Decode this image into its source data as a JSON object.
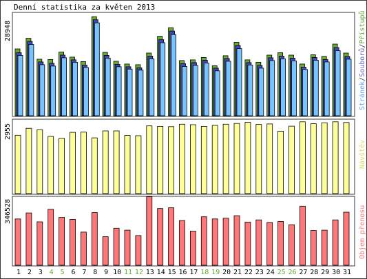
{
  "chart_data": {
    "type": "bar",
    "title": "Denní statistika za květen 2013",
    "categories": [
      "1",
      "2",
      "3",
      "4",
      "5",
      "6",
      "7",
      "8",
      "9",
      "10",
      "11",
      "12",
      "13",
      "14",
      "15",
      "16",
      "17",
      "18",
      "19",
      "20",
      "21",
      "22",
      "23",
      "24",
      "25",
      "26",
      "27",
      "28",
      "29",
      "30",
      "31"
    ],
    "weekend_days": [
      "4",
      "5",
      "11",
      "12",
      "18",
      "19",
      "25",
      "26"
    ],
    "colors": {
      "frame": "#3a3a3a",
      "pristupu": "#66aa33",
      "soubory": "#4444bb",
      "stranky": "#77c4ff",
      "navstevy": "#ffff99",
      "objem": "#ff7777",
      "weekend_label": "#66aa33",
      "label_stranky": "#66aaff",
      "label_soubory": "#6666cc",
      "label_pristupu": "#66aa33",
      "label_navstevy": "#dddd66",
      "label_objem": "#ff7777"
    },
    "panels": [
      {
        "id": "traffic",
        "ymax": 28948,
        "ymax_label": "28948",
        "series_labels": [
          "Stránek",
          "Souborů",
          "Přístupů"
        ],
        "separator": "/",
        "series": [
          {
            "name": "Přístupů",
            "values": [
              19500,
              22600,
              16500,
              16400,
              18600,
              17100,
              15800,
              28900,
              18500,
              15900,
              15100,
              14900,
              18300,
              23200,
              25700,
              16100,
              16300,
              17000,
              14600,
              17500,
              21400,
              16300,
              15600,
              17700,
              18400,
              17700,
              15100,
              17800,
              17300,
              20900,
              18300
            ]
          },
          {
            "name": "Souborů",
            "values": [
              18400,
              21700,
              15700,
              15300,
              17700,
              16300,
              14800,
              28000,
              17600,
              15000,
              14300,
              14000,
              17400,
              22200,
              24700,
              15200,
              15500,
              16200,
              13900,
              16700,
              20500,
              15500,
              14700,
              16900,
              17400,
              16800,
              14200,
              17000,
              16400,
              19900,
              17300
            ]
          },
          {
            "name": "Stránek",
            "values": [
              17600,
              20800,
              14900,
              14500,
              16900,
              15600,
              14100,
              27100,
              16800,
              14300,
              13600,
              13300,
              16600,
              21300,
              23700,
              14400,
              14700,
              15400,
              13100,
              15900,
              19600,
              14800,
              13900,
              16100,
              16600,
              16000,
              13500,
              16200,
              15700,
              19000,
              16500
            ]
          }
        ]
      },
      {
        "id": "visits",
        "ymax": 2955,
        "ymax_label": "2955",
        "series_labels": [
          "Návštěv"
        ],
        "values": [
          2430,
          2720,
          2660,
          2380,
          2300,
          2550,
          2560,
          2320,
          2610,
          2610,
          2420,
          2410,
          2820,
          2800,
          2790,
          2890,
          2870,
          2800,
          2840,
          2890,
          2920,
          2970,
          2880,
          2900,
          2600,
          2810,
          2990,
          2910,
          2950,
          2990,
          2960
        ]
      },
      {
        "id": "volume",
        "ymax": 346528,
        "ymax_label": "346528",
        "series_labels": [
          "Objem přenosu"
        ],
        "values": [
          240000,
          271000,
          225000,
          290000,
          248000,
          238000,
          172000,
          273000,
          148000,
          192000,
          182000,
          154000,
          355000,
          294000,
          298000,
          232000,
          177000,
          251000,
          240000,
          244000,
          257000,
          224000,
          235000,
          222000,
          227000,
          210000,
          306000,
          180000,
          182000,
          235000,
          275000
        ]
      }
    ]
  }
}
